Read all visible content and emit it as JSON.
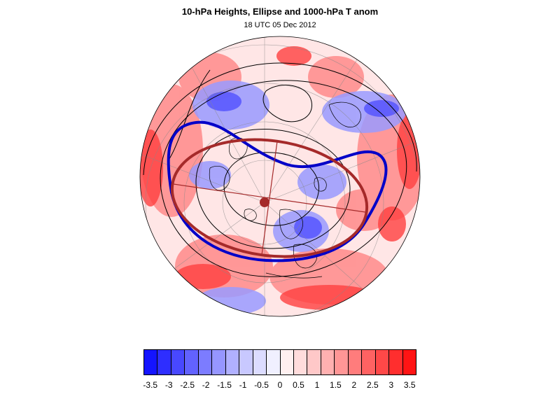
{
  "title": "10-hPa Heights, Ellipse and 1000-hPa T anom",
  "subtitle": "18 UTC 05 Dec 2012",
  "map": {
    "projection": "polar-stereographic-north",
    "field": "1000-hPa T anom",
    "contour_field": "10-hPa Heights",
    "colors": {
      "highlight_contour": "#0000c8",
      "ellipse": "#a52a2a",
      "contour": "#000000"
    }
  },
  "colorbar": {
    "colors": [
      "#1414ff",
      "#2e2eff",
      "#4848ff",
      "#6262ff",
      "#7c7cff",
      "#9696ff",
      "#b0b0ff",
      "#c8c8ff",
      "#dcdcff",
      "#f0f0ff",
      "#fff0f0",
      "#ffdcdc",
      "#ffc8c8",
      "#ffb0b0",
      "#ff9696",
      "#ff7c7c",
      "#ff6262",
      "#ff4848",
      "#ff2e2e",
      "#ff1414"
    ],
    "labels": [
      "-3.5",
      "-3",
      "-2.5",
      "-2",
      "-1.5",
      "-1",
      "-0.5",
      "0",
      "0.5",
      "1",
      "1.5",
      "2",
      "2.5",
      "3",
      "3.5"
    ]
  }
}
